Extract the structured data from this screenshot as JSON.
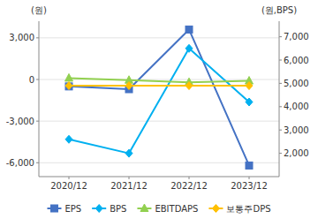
{
  "chart_data": {
    "type": "line",
    "categories": [
      "2020/12",
      "2021/12",
      "2022/12",
      "2023/12"
    ],
    "series": [
      {
        "name": "EPS",
        "color": "#4472c4",
        "marker": "square",
        "values": [
          -500,
          -700,
          3600,
          -6200
        ]
      },
      {
        "name": "BPS",
        "color": "#00b0f0",
        "marker": "diamond",
        "axis": "y2",
        "values": [
          2600,
          2000,
          6500,
          4200
        ]
      },
      {
        "name": "EBITDAPS",
        "color": "#92d050",
        "marker": "triangle",
        "values": [
          100,
          -50,
          -200,
          -100
        ]
      },
      {
        "name": "보통주DPS",
        "color": "#ffc000",
        "marker": "diamond",
        "axis": "y2",
        "values": [
          4900,
          4900,
          4900,
          4900
        ]
      }
    ],
    "ylabel": "(원)",
    "y2label": "(원,BPS)",
    "ylim": [
      -7000,
      4200
    ],
    "yticks": [
      {
        "value": -6000,
        "label": "-6,000"
      },
      {
        "value": -3000,
        "label": "-3,000"
      },
      0,
      {
        "value": 3000,
        "label": "3,000"
      }
    ],
    "y2lim": [
      1000,
      7667
    ],
    "y2ticks": [
      {
        "value": 2000,
        "label": "2,000"
      },
      {
        "value": 3000,
        "label": "3,000"
      },
      {
        "value": 4000,
        "label": "4,000"
      },
      {
        "value": 5000,
        "label": "5,000"
      },
      {
        "value": 6000,
        "label": "6,000"
      },
      {
        "value": 7000,
        "label": "7,000"
      }
    ],
    "grid": true,
    "legend": "bottom"
  }
}
